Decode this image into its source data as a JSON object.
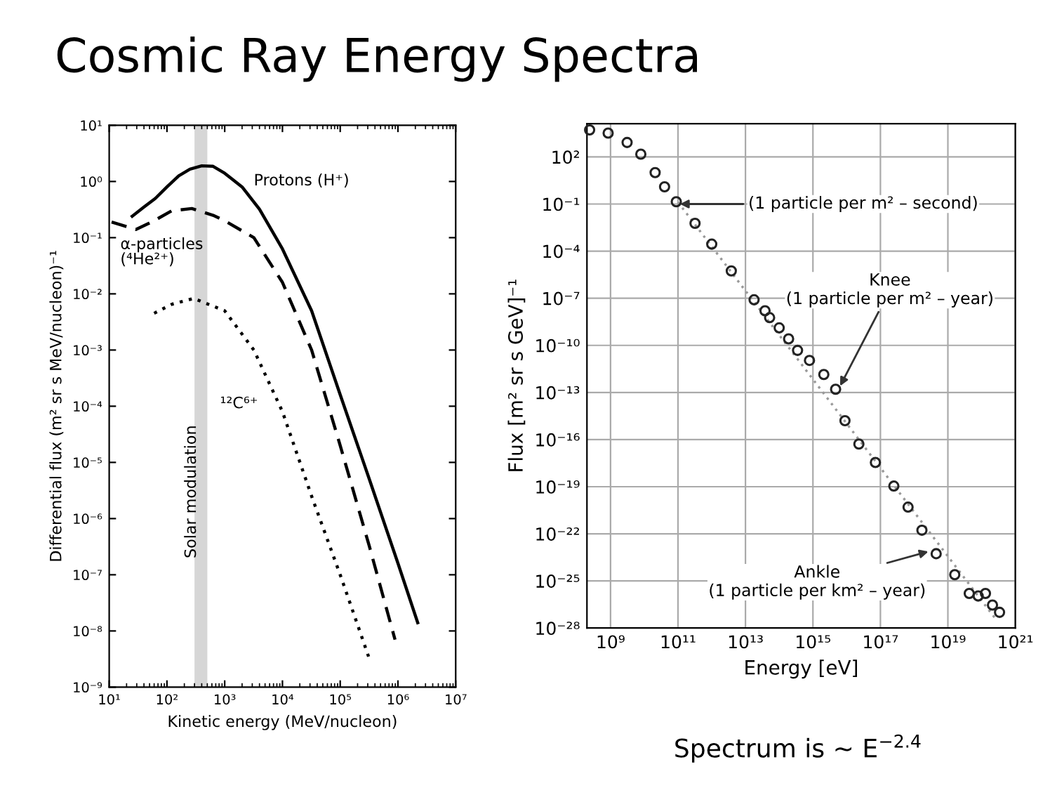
{
  "chart_data": [
    {
      "type": "line",
      "title": "Cosmic Ray Energy Spectra",
      "xlabel": "Kinetic energy (MeV/nucleon)",
      "ylabel": "Differential flux (m² sr s MeV/nucleon)⁻¹",
      "log": "xy",
      "xlim": [
        10,
        10000000
      ],
      "ylim": [
        1e-09,
        10
      ],
      "xticks": [
        {
          "value": 10,
          "label": "10¹"
        },
        {
          "value": 100,
          "label": "10²"
        },
        {
          "value": 1000,
          "label": "10³"
        },
        {
          "value": 10000,
          "label": "10⁴"
        },
        {
          "value": 100000,
          "label": "10⁵"
        },
        {
          "value": 1000000,
          "label": "10⁶"
        },
        {
          "value": 10000000,
          "label": "10⁷"
        }
      ],
      "yticks": [
        {
          "value": 1e-09,
          "label": "10⁻⁹"
        },
        {
          "value": 1e-08,
          "label": "10⁻⁸"
        },
        {
          "value": 1e-07,
          "label": "10⁻⁷"
        },
        {
          "value": 1e-06,
          "label": "10⁻⁶"
        },
        {
          "value": 1e-05,
          "label": "10⁻⁵"
        },
        {
          "value": 0.0001,
          "label": "10⁻⁴"
        },
        {
          "value": 0.001,
          "label": "10⁻³"
        },
        {
          "value": 0.01,
          "label": "10⁻²"
        },
        {
          "value": 0.1,
          "label": "10⁻¹"
        },
        {
          "value": 1,
          "label": "10⁰"
        },
        {
          "value": 10,
          "label": "10¹"
        }
      ],
      "grid": false,
      "legend": false,
      "bands": [
        {
          "axis": "x",
          "from": 300,
          "to": 500,
          "label": "Solar modulation",
          "color": "#cccccc"
        }
      ],
      "series": [
        {
          "name": "Protons (H⁺)",
          "color": "#000000",
          "line_style": "solid",
          "x": [
            25,
            40,
            63,
            100,
            160,
            250,
            400,
            630,
            1000,
            2000,
            4000,
            10000,
            32000,
            100000,
            320000,
            1000000,
            2200000
          ],
          "values": [
            0.24,
            0.35,
            0.5,
            0.8,
            1.26,
            1.66,
            1.9,
            1.86,
            1.4,
            0.8,
            0.32,
            0.063,
            0.005,
            0.00016,
            5e-06,
            1.6e-07,
            1.4e-08
          ]
        },
        {
          "name": "α-particles\n(⁴He²⁺)",
          "color": "#000000",
          "line_style": "dashed",
          "x": [
            11,
            29,
            60,
            120,
            270,
            630,
            1000,
            3200,
            10000,
            32000,
            100000,
            320000,
            890000
          ],
          "values": [
            0.19,
            0.14,
            0.2,
            0.3,
            0.33,
            0.25,
            0.2,
            0.1,
            0.016,
            0.001,
            2e-05,
            3.2e-07,
            7e-09
          ]
        },
        {
          "name": "¹²C⁶⁺",
          "color": "#000000",
          "line_style": "dotted",
          "x": [
            60,
            120,
            290,
            1000,
            3200,
            10000,
            32000,
            100000,
            310000
          ],
          "values": [
            0.0045,
            0.0065,
            0.0083,
            0.005,
            0.001,
            8e-05,
            2.5e-06,
            1e-07,
            3.5e-09
          ]
        }
      ]
    },
    {
      "type": "scatter",
      "xlabel": "Energy [eV]",
      "ylabel": "Flux [m² sr s GeV]⁻¹",
      "log": "xy",
      "xlim": [
        200000000.0,
        1e+21
      ],
      "ylim": [
        1e-28,
        13000.0
      ],
      "xticks": [
        {
          "value": 1000000000.0,
          "label": "10⁹"
        },
        {
          "value": 100000000000.0,
          "label": "10¹¹"
        },
        {
          "value": 10000000000000.0,
          "label": "10¹³"
        },
        {
          "value": 1000000000000000.0,
          "label": "10¹⁵"
        },
        {
          "value": 1e+17,
          "label": "10¹⁷"
        },
        {
          "value": 1e+19,
          "label": "10¹⁹"
        },
        {
          "value": 1e+21,
          "label": "10²¹"
        }
      ],
      "yticks": [
        {
          "value": 1e-28,
          "label": "10⁻²⁸"
        },
        {
          "value": 1e-25,
          "label": "10⁻²⁵"
        },
        {
          "value": 1e-22,
          "label": "10⁻²²"
        },
        {
          "value": 1e-19,
          "label": "10⁻¹⁹"
        },
        {
          "value": 1e-16,
          "label": "10⁻¹⁶"
        },
        {
          "value": 1e-13,
          "label": "10⁻¹³"
        },
        {
          "value": 1e-10,
          "label": "10⁻¹⁰"
        },
        {
          "value": 1e-07,
          "label": "10⁻⁷"
        },
        {
          "value": 0.0001,
          "label": "10⁻⁴"
        },
        {
          "value": 0.1,
          "label": "10⁻¹"
        },
        {
          "value": 100,
          "label": "10²"
        }
      ],
      "grid": true,
      "legend": false,
      "annotations": [
        {
          "text": "(1 particle per m² – second)",
          "x": 100000000000.0,
          "y": 0.1
        },
        {
          "text": "Knee\n(1 particle per m² – year)",
          "x": 6000000000000000.0,
          "y": 2e-13
        },
        {
          "text": "Ankle\n(1 particle per km² – year)",
          "x": 3e+18,
          "y": 8e-24
        },
        "Spectrum is ~ E$^{−2.4}$"
      ],
      "series": [
        {
          "marker": "circle",
          "color": "#222222",
          "x": [
            240000000.0,
            850000000.0,
            3100000000.0,
            7900000000.0,
            21000000000.0,
            40000000000.0,
            89000000000.0,
            320000000000.0,
            1000000000000.0,
            3800000000000.0,
            18000000000000.0,
            38000000000000.0,
            52000000000000.0,
            100000000000000.0,
            190000000000000.0,
            350000000000000.0,
            790000000000000.0,
            2100000000000000.0,
            4700000000000000.0,
            8900000000000000.0,
            2.3e+16,
            7.1e+16,
            2.5e+17,
            6.6e+17,
            1.7e+18,
            4.5e+18,
            1.6e+19,
            4.3e+19,
            7.9e+19,
            1.3e+20,
            2.1e+20,
            3.4e+20
          ],
          "values": [
            5200,
            3300,
            830,
            150,
            10,
            1.25,
            0.14,
            0.0059,
            0.00028,
            5.5e-06,
            8e-08,
            1.6e-08,
            5.8e-09,
            1.3e-09,
            2.6e-10,
            4.8e-11,
            1.1e-11,
            1.4e-12,
            1.6e-13,
            1.6e-15,
            5.2e-17,
            3.5e-18,
            1.1e-19,
            5e-21,
            1.7e-22,
            5.4e-24,
            2.5e-25,
            1.6e-26,
            1.1e-26,
            1.6e-26,
            2.9e-27,
            1e-27
          ]
        },
        {
          "type": "line",
          "marker": "none",
          "color": "#999999",
          "line_style": "dotted",
          "x": [
            100000000000.0,
            2.9e+20
          ],
          "values": [
            0.13,
            2.8e-28
          ]
        }
      ]
    }
  ]
}
